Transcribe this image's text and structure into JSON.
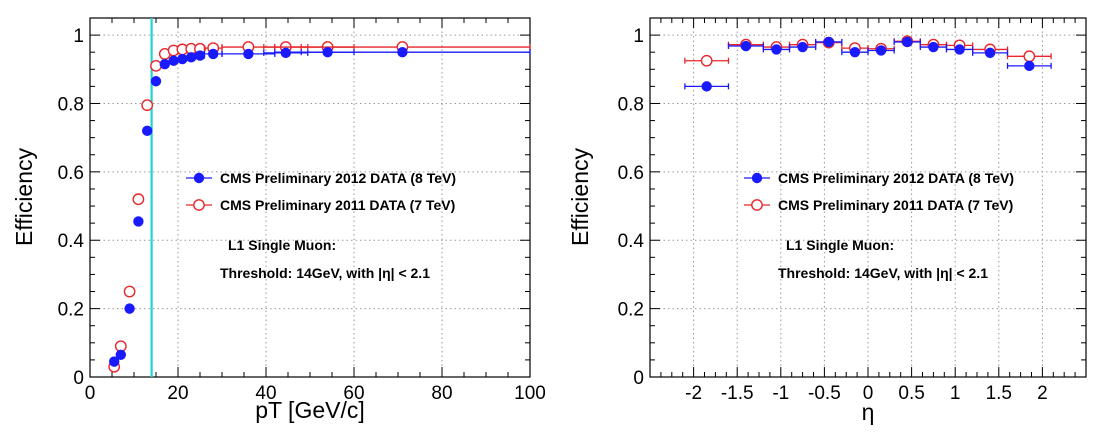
{
  "colors": {
    "series_2012": "#1a1aff",
    "series_2011": "#e8262b",
    "threshold_line": "#22d3d3",
    "grid": "#9a9a9a"
  },
  "chart_data": [
    {
      "type": "scatter",
      "title": "",
      "xlabel": "pT [GeV/c]",
      "ylabel": "Efficiency",
      "xlim": [
        0,
        100
      ],
      "ylim": [
        0,
        1.05
      ],
      "xticks": [
        0,
        20,
        40,
        60,
        80,
        100
      ],
      "xtick_labels": [
        "0",
        "20",
        "40",
        "60",
        "80",
        "100"
      ],
      "yticks": [
        0,
        0.2,
        0.4,
        0.6,
        0.8,
        1
      ],
      "ytick_labels": [
        "0",
        "0.2",
        "0.4",
        "0.6",
        "0.8",
        "1"
      ],
      "grid": true,
      "threshold_x": 14,
      "legend": {
        "placement": "center-right",
        "entries": [
          "CMS Preliminary 2012 DATA (8 TeV)",
          "CMS Preliminary 2011 DATA (7 TeV)"
        ]
      },
      "annotations": [
        "L1 Single Muon:",
        "Threshold: 14GeV, with |η| < 2.1"
      ],
      "series": [
        {
          "name": "CMS Preliminary 2012 DATA (8 TeV)",
          "marker": "filled",
          "points": [
            {
              "x": 5.5,
              "y": 0.045
            },
            {
              "x": 7,
              "y": 0.065
            },
            {
              "x": 9,
              "y": 0.2
            },
            {
              "x": 11,
              "y": 0.455
            },
            {
              "x": 13,
              "y": 0.72
            },
            {
              "x": 15,
              "y": 0.865
            },
            {
              "x": 17,
              "y": 0.915
            },
            {
              "x": 19,
              "y": 0.925
            },
            {
              "x": 21,
              "y": 0.93
            },
            {
              "x": 23,
              "y": 0.935
            },
            {
              "x": 25,
              "y": 0.94,
              "xerr": 1
            },
            {
              "x": 28,
              "y": 0.945,
              "xerr": 2
            },
            {
              "x": 36,
              "y": 0.945,
              "xerr": 6
            },
            {
              "x": 44.5,
              "y": 0.948,
              "xerr": 5
            },
            {
              "x": 54,
              "y": 0.95,
              "xerr": 6
            },
            {
              "x": 71,
              "y": 0.95,
              "xerr": 29
            }
          ]
        },
        {
          "name": "CMS Preliminary 2011 DATA (7 TeV)",
          "marker": "open",
          "points": [
            {
              "x": 5.5,
              "y": 0.03
            },
            {
              "x": 7,
              "y": 0.09
            },
            {
              "x": 9,
              "y": 0.25
            },
            {
              "x": 11,
              "y": 0.52
            },
            {
              "x": 13,
              "y": 0.795
            },
            {
              "x": 15,
              "y": 0.91
            },
            {
              "x": 17,
              "y": 0.945
            },
            {
              "x": 19,
              "y": 0.955
            },
            {
              "x": 21,
              "y": 0.958
            },
            {
              "x": 23,
              "y": 0.96
            },
            {
              "x": 25,
              "y": 0.96,
              "xerr": 1
            },
            {
              "x": 28,
              "y": 0.962,
              "xerr": 2
            },
            {
              "x": 36,
              "y": 0.965,
              "xerr": 6
            },
            {
              "x": 44.5,
              "y": 0.965,
              "xerr": 5
            },
            {
              "x": 54,
              "y": 0.965,
              "xerr": 6
            },
            {
              "x": 71,
              "y": 0.965,
              "xerr": 29
            }
          ]
        }
      ]
    },
    {
      "type": "scatter",
      "title": "",
      "xlabel": "η",
      "ylabel": "Efficiency",
      "xlim": [
        -2.5,
        2.5
      ],
      "ylim": [
        0,
        1.05
      ],
      "xticks": [
        -2,
        -1.5,
        -1,
        -0.5,
        0,
        0.5,
        1,
        1.5,
        2
      ],
      "xtick_labels": [
        "-2",
        "-1.5",
        "-1",
        "-0.5",
        "0",
        "0.5",
        "1",
        "1.5",
        "2"
      ],
      "yticks": [
        0,
        0.2,
        0.4,
        0.6,
        0.8,
        1
      ],
      "ytick_labels": [
        "0",
        "0.2",
        "0.4",
        "0.6",
        "0.8",
        "1"
      ],
      "grid": true,
      "legend": {
        "placement": "center",
        "entries": [
          "CMS Preliminary 2012 DATA (8 TeV)",
          "CMS Preliminary 2011 DATA (7 TeV)"
        ]
      },
      "annotations": [
        "L1 Single Muon:",
        "Threshold: 14GeV, with |η| < 2.1"
      ],
      "series": [
        {
          "name": "CMS Preliminary 2012 DATA (8 TeV)",
          "marker": "filled",
          "points": [
            {
              "x": -1.85,
              "y": 0.85,
              "xerr": 0.25
            },
            {
              "x": -1.4,
              "y": 0.968,
              "xerr": 0.2
            },
            {
              "x": -1.05,
              "y": 0.958,
              "xerr": 0.15
            },
            {
              "x": -0.75,
              "y": 0.965,
              "xerr": 0.15
            },
            {
              "x": -0.45,
              "y": 0.98,
              "xerr": 0.15
            },
            {
              "x": -0.15,
              "y": 0.95,
              "xerr": 0.15
            },
            {
              "x": 0.15,
              "y": 0.955,
              "xerr": 0.15
            },
            {
              "x": 0.45,
              "y": 0.98,
              "xerr": 0.15
            },
            {
              "x": 0.75,
              "y": 0.965,
              "xerr": 0.15
            },
            {
              "x": 1.05,
              "y": 0.958,
              "xerr": 0.15
            },
            {
              "x": 1.4,
              "y": 0.948,
              "xerr": 0.2
            },
            {
              "x": 1.85,
              "y": 0.91,
              "xerr": 0.25
            }
          ]
        },
        {
          "name": "CMS Preliminary 2011 DATA (7 TeV)",
          "marker": "open",
          "points": [
            {
              "x": -1.85,
              "y": 0.925,
              "xerr": 0.25
            },
            {
              "x": -1.4,
              "y": 0.972,
              "xerr": 0.2
            },
            {
              "x": -1.05,
              "y": 0.965,
              "xerr": 0.15
            },
            {
              "x": -0.75,
              "y": 0.972,
              "xerr": 0.15
            },
            {
              "x": -0.45,
              "y": 0.978,
              "xerr": 0.15
            },
            {
              "x": -0.15,
              "y": 0.962,
              "xerr": 0.15
            },
            {
              "x": 0.15,
              "y": 0.96,
              "xerr": 0.15
            },
            {
              "x": 0.45,
              "y": 0.982,
              "xerr": 0.15
            },
            {
              "x": 0.75,
              "y": 0.972,
              "xerr": 0.15
            },
            {
              "x": 1.05,
              "y": 0.97,
              "xerr": 0.15
            },
            {
              "x": 1.4,
              "y": 0.958,
              "xerr": 0.2
            },
            {
              "x": 1.85,
              "y": 0.938,
              "xerr": 0.25
            }
          ]
        }
      ]
    }
  ]
}
